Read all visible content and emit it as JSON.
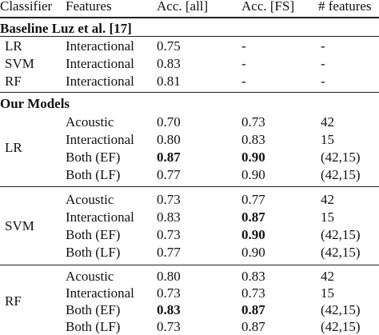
{
  "table": {
    "header": [
      "Classifier",
      "Features",
      "Acc. [all]",
      "Acc. [FS]",
      "# features"
    ],
    "baseline": {
      "title": "Baseline Luz et al. [17]",
      "rows": [
        {
          "classifier": "LR",
          "feature": "Interactional",
          "acc_all": "0.75",
          "acc_fs": "-",
          "n_features": "-"
        },
        {
          "classifier": "SVM",
          "feature": "Interactional",
          "acc_all": "0.83",
          "acc_fs": "-",
          "n_features": "-"
        },
        {
          "classifier": "RF",
          "feature": "Interactional",
          "acc_all": "0.81",
          "acc_fs": "-",
          "n_features": "-"
        }
      ]
    },
    "models": {
      "title": "Our Models",
      "groups": [
        {
          "classifier": "LR",
          "rows": [
            {
              "feature": "Acoustic",
              "acc_all": "0.70",
              "acc_fs": "0.73",
              "n_features": "42"
            },
            {
              "feature": "Interactional",
              "acc_all": "0.80",
              "acc_fs": "0.83",
              "n_features": "15"
            },
            {
              "feature": "Both (EF)",
              "acc_all": "0.87",
              "acc_fs": "0.90",
              "n_features": "(42,15)"
            },
            {
              "feature": "Both (LF)",
              "acc_all": "0.77",
              "acc_fs": "0.90",
              "n_features": "(42,15)"
            }
          ]
        },
        {
          "classifier": "SVM",
          "rows": [
            {
              "feature": "Acoustic",
              "acc_all": "0.73",
              "acc_fs": "0.77",
              "n_features": "42"
            },
            {
              "feature": "Interactional",
              "acc_all": "0.83",
              "acc_fs": "0.87",
              "n_features": "15"
            },
            {
              "feature": "Both (EF)",
              "acc_all": "0.73",
              "acc_fs": "0.90",
              "n_features": "(42,15)"
            },
            {
              "feature": "Both (LF)",
              "acc_all": "0.77",
              "acc_fs": "0.90",
              "n_features": "(42,15)"
            }
          ]
        },
        {
          "classifier": "RF",
          "rows": [
            {
              "feature": "Acoustic",
              "acc_all": "0.80",
              "acc_fs": "0.83",
              "n_features": "42"
            },
            {
              "feature": "Interactional",
              "acc_all": "0.73",
              "acc_fs": "0.73",
              "n_features": "15"
            },
            {
              "feature": "Both (EF)",
              "acc_all": "0.83",
              "acc_fs": "0.87",
              "n_features": "(42,15)"
            },
            {
              "feature": "Both (LF)",
              "acc_all": "0.73",
              "acc_fs": "0.87",
              "n_features": "(42,15)"
            }
          ]
        }
      ]
    }
  }
}
